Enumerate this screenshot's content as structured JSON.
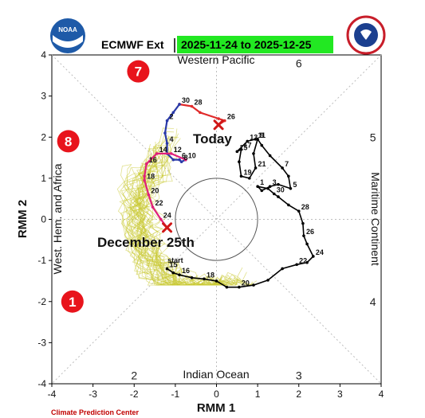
{
  "header": {
    "title": "ECMWF Ext",
    "date_range": "2025-11-24 to 2025-12-25",
    "date_bg_color": "#22e822"
  },
  "footer": {
    "credit": "Climate Prediction Center"
  },
  "logos": {
    "left": "noaa-logo",
    "right": "nws-logo"
  },
  "chart_data": {
    "type": "line",
    "title": "ECMWF Ext",
    "xlabel": "RMM 1",
    "ylabel": "RMM 2",
    "xlim": [
      -4,
      4
    ],
    "ylim": [
      -4,
      4
    ],
    "x_ticks": [
      "-4",
      "-3",
      "-2",
      "-1",
      "0",
      "1",
      "2",
      "3",
      "4"
    ],
    "y_ticks": [
      "-4",
      "-3",
      "-2",
      "-1",
      "0",
      "1",
      "2",
      "3",
      "4"
    ],
    "grid": false,
    "unit_circle_radius": 1,
    "regions": {
      "top": "Western Pacific",
      "bottom": "Indian Ocean",
      "left": "West. Hem. and Africa",
      "right": "Maritime Continent"
    },
    "phase_numbers": [
      {
        "label": "1",
        "x": -3.5,
        "y": -2.0
      },
      {
        "label": "2",
        "x": -2.0,
        "y": -3.8
      },
      {
        "label": "3",
        "x": 2.0,
        "y": -3.8
      },
      {
        "label": "4",
        "x": 3.8,
        "y": -2.0
      },
      {
        "label": "5",
        "x": 3.8,
        "y": 2.0
      },
      {
        "label": "6",
        "x": 2.0,
        "y": 3.8
      },
      {
        "label": "7",
        "x": -1.9,
        "y": 3.6
      },
      {
        "label": "8",
        "x": -3.6,
        "y": 1.9
      }
    ],
    "highlighted_phases": [
      "7",
      "8",
      "1"
    ],
    "highlight_color": "#e8141c",
    "annotations": [
      {
        "text": "Today",
        "x": 0.05,
        "y": 2.3
      },
      {
        "text": "December 25th",
        "x": -1.15,
        "y": -0.2
      }
    ],
    "series": [
      {
        "kind": "observed",
        "color": "#000000",
        "points": [
          {
            "x": -1.2,
            "y": -1.2,
            "label": "15"
          },
          {
            "x": -1.05,
            "y": -1.3,
            "label": ""
          },
          {
            "x": -0.9,
            "y": -1.35,
            "label": "16"
          },
          {
            "x": -0.6,
            "y": -1.42,
            "label": ""
          },
          {
            "x": -0.3,
            "y": -1.45,
            "label": "18"
          },
          {
            "x": 0.0,
            "y": -1.5,
            "label": ""
          },
          {
            "x": 0.25,
            "y": -1.65,
            "label": ""
          },
          {
            "x": 0.55,
            "y": -1.65,
            "label": "20"
          },
          {
            "x": 0.9,
            "y": -1.6,
            "label": ""
          },
          {
            "x": 1.25,
            "y": -1.48,
            "label": ""
          },
          {
            "x": 1.6,
            "y": -1.2,
            "label": ""
          },
          {
            "x": 1.95,
            "y": -1.1,
            "label": "22"
          },
          {
            "x": 2.2,
            "y": -1.05,
            "label": ""
          },
          {
            "x": 2.35,
            "y": -0.9,
            "label": "24"
          },
          {
            "x": 2.2,
            "y": -0.6,
            "label": ""
          },
          {
            "x": 2.12,
            "y": -0.4,
            "label": "26"
          },
          {
            "x": 2.1,
            "y": -0.1,
            "label": ""
          },
          {
            "x": 2.0,
            "y": 0.2,
            "label": "28"
          },
          {
            "x": 1.75,
            "y": 0.35,
            "label": ""
          },
          {
            "x": 1.5,
            "y": 0.55,
            "label": ""
          },
          {
            "x": 1.4,
            "y": 0.62,
            "label": "30"
          },
          {
            "x": 1.25,
            "y": 0.75,
            "label": ""
          },
          {
            "x": 1.0,
            "y": 0.8,
            "label": "1"
          },
          {
            "x": 1.1,
            "y": 0.7,
            "label": ""
          },
          {
            "x": 1.3,
            "y": 0.8,
            "label": "3"
          },
          {
            "x": 1.5,
            "y": 0.85,
            "label": ""
          },
          {
            "x": 1.8,
            "y": 0.75,
            "label": "5"
          },
          {
            "x": 1.75,
            "y": 1.05,
            "label": ""
          },
          {
            "x": 1.6,
            "y": 1.25,
            "label": "7"
          },
          {
            "x": 1.3,
            "y": 1.55,
            "label": ""
          },
          {
            "x": 1.1,
            "y": 1.8,
            "label": ""
          },
          {
            "x": 1.0,
            "y": 1.95,
            "label": "9"
          },
          {
            "x": 0.9,
            "y": 1.6,
            "label": ""
          },
          {
            "x": 0.95,
            "y": 1.25,
            "label": "21"
          },
          {
            "x": 0.8,
            "y": 1.0,
            "label": ""
          },
          {
            "x": 0.6,
            "y": 1.05,
            "label": "19"
          },
          {
            "x": 0.55,
            "y": 1.4,
            "label": ""
          },
          {
            "x": 0.6,
            "y": 1.7,
            "label": "17"
          },
          {
            "x": 0.5,
            "y": 1.65,
            "label": "15"
          },
          {
            "x": 0.75,
            "y": 1.9,
            "label": "13"
          },
          {
            "x": 0.95,
            "y": 1.95,
            "label": "11"
          }
        ]
      },
      {
        "kind": "forecast-early",
        "color": "#e02a2a",
        "points": [
          {
            "x": 0.05,
            "y": 2.3,
            "label": ""
          },
          {
            "x": 0.2,
            "y": 2.4,
            "label": "26"
          },
          {
            "x": 0.05,
            "y": 2.45,
            "label": ""
          },
          {
            "x": -0.4,
            "y": 2.6,
            "label": ""
          },
          {
            "x": -0.6,
            "y": 2.75,
            "label": "28"
          },
          {
            "x": -0.9,
            "y": 2.8,
            "label": "30"
          }
        ]
      },
      {
        "kind": "forecast-mid",
        "color": "#2a3aa8",
        "points": [
          {
            "x": -0.9,
            "y": 2.8,
            "label": ""
          },
          {
            "x": -1.05,
            "y": 2.6,
            "label": ""
          },
          {
            "x": -1.2,
            "y": 2.4,
            "label": "2"
          },
          {
            "x": -1.25,
            "y": 2.1,
            "label": ""
          },
          {
            "x": -1.2,
            "y": 1.85,
            "label": "4"
          },
          {
            "x": -1.2,
            "y": 1.6,
            "label": ""
          },
          {
            "x": -1.05,
            "y": 1.45,
            "label": ""
          },
          {
            "x": -0.9,
            "y": 1.45,
            "label": "6"
          },
          {
            "x": -0.85,
            "y": 1.4,
            "label": "8"
          },
          {
            "x": -0.75,
            "y": 1.45,
            "label": "10"
          }
        ]
      },
      {
        "kind": "forecast-late",
        "color": "#e0207a",
        "points": [
          {
            "x": -0.75,
            "y": 1.45,
            "label": ""
          },
          {
            "x": -1.1,
            "y": 1.6,
            "label": "12"
          },
          {
            "x": -1.45,
            "y": 1.6,
            "label": "14"
          },
          {
            "x": -1.7,
            "y": 1.35,
            "label": "16"
          },
          {
            "x": -1.75,
            "y": 1.05,
            "label": ""
          },
          {
            "x": -1.75,
            "y": 0.95,
            "label": "18"
          },
          {
            "x": -1.65,
            "y": 0.6,
            "label": "20"
          },
          {
            "x": -1.55,
            "y": 0.3,
            "label": "22"
          },
          {
            "x": -1.35,
            "y": 0.0,
            "label": "24"
          },
          {
            "x": -1.2,
            "y": -0.2,
            "label": ""
          }
        ]
      }
    ],
    "markers": [
      {
        "name": "today-marker",
        "x": 0.05,
        "y": 2.3
      },
      {
        "name": "december-25-marker",
        "x": -1.2,
        "y": -0.2
      }
    ],
    "start_label": {
      "text": "start",
      "x": -1.15,
      "y": -1.0
    },
    "ensemble_color": "#c8c832"
  }
}
